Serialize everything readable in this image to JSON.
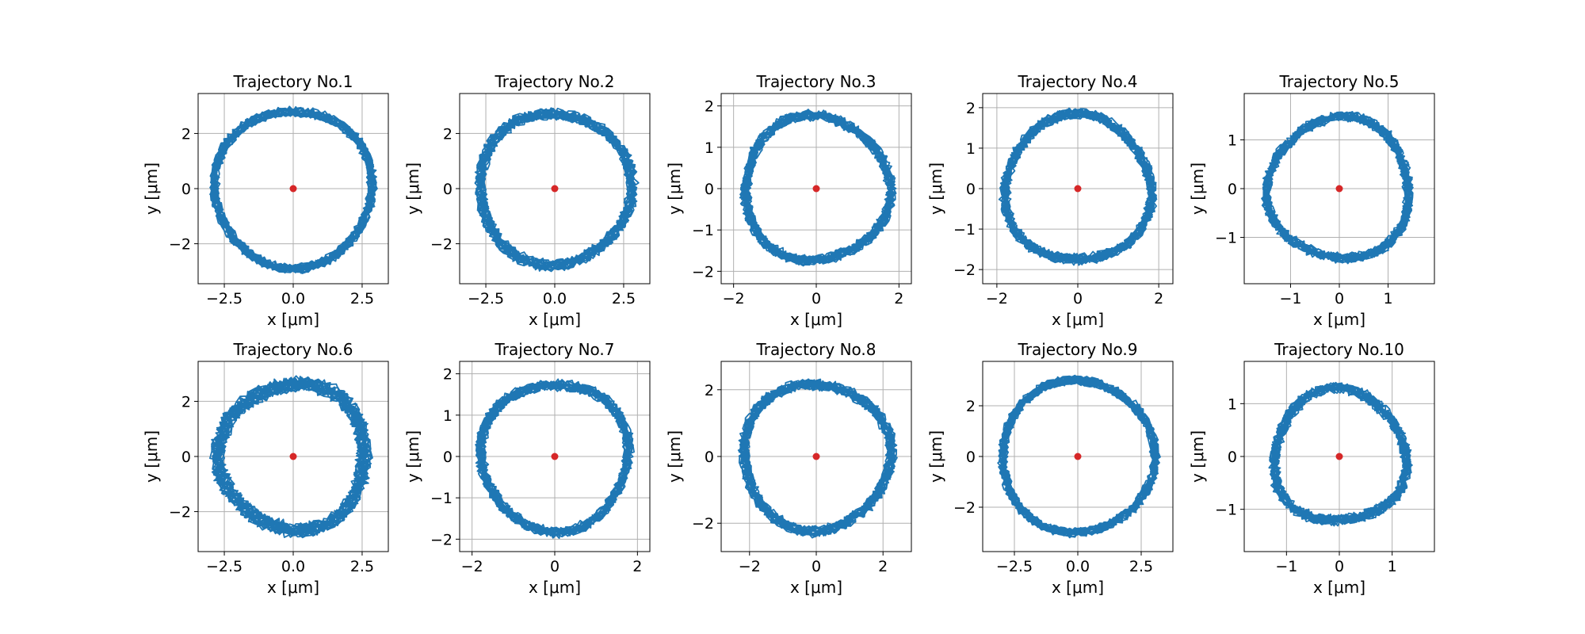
{
  "colors": {
    "trajectory": "#1f77b4",
    "center": "#d62728",
    "grid": "#b0b0b0"
  },
  "chart_data": [
    {
      "type": "line",
      "title": "Trajectory No.1",
      "xlabel": "x [μm]",
      "ylabel": "y [μm]",
      "grid": true,
      "xlim": [
        -3.45,
        3.45
      ],
      "ylim": [
        -3.45,
        3.45
      ],
      "xticks": [
        -2.5,
        0.0,
        2.5
      ],
      "xtick_labels": [
        "−2.5",
        "0.0",
        "2.5"
      ],
      "yticks": [
        -2,
        0,
        2
      ],
      "ytick_labels": [
        "−2",
        "0",
        "2"
      ],
      "center": [
        0,
        0
      ],
      "radius": 2.85,
      "noise": 0.13
    },
    {
      "type": "line",
      "title": "Trajectory No.2",
      "xlabel": "x [μm]",
      "ylabel": "y [μm]",
      "grid": true,
      "xlim": [
        -3.45,
        3.45
      ],
      "ylim": [
        -3.45,
        3.45
      ],
      "xticks": [
        -2.5,
        0.0,
        2.5
      ],
      "xtick_labels": [
        "−2.5",
        "0.0",
        "2.5"
      ],
      "yticks": [
        -2,
        0,
        2
      ],
      "ytick_labels": [
        "−2",
        "0",
        "2"
      ],
      "center": [
        0,
        0
      ],
      "radius": 2.75,
      "noise": 0.16
    },
    {
      "type": "line",
      "title": "Trajectory No.3",
      "xlabel": "x [μm]",
      "ylabel": "y [μm]",
      "grid": true,
      "xlim": [
        -2.3,
        2.3
      ],
      "ylim": [
        -2.3,
        2.3
      ],
      "xticks": [
        -2,
        0,
        2
      ],
      "xtick_labels": [
        "−2",
        "0",
        "2"
      ],
      "yticks": [
        -2,
        -1,
        0,
        1,
        2
      ],
      "ytick_labels": [
        "−2",
        "−1",
        "0",
        "1",
        "2"
      ],
      "center": [
        0,
        0
      ],
      "radius": 1.75,
      "noise": 0.14
    },
    {
      "type": "line",
      "title": "Trajectory No.4",
      "xlabel": "x [μm]",
      "ylabel": "y [μm]",
      "grid": true,
      "xlim": [
        -2.35,
        2.35
      ],
      "ylim": [
        -2.35,
        2.35
      ],
      "xticks": [
        -2,
        0,
        2
      ],
      "xtick_labels": [
        "−2",
        "0",
        "2"
      ],
      "yticks": [
        -2,
        -1,
        0,
        1,
        2
      ],
      "ytick_labels": [
        "−2",
        "−1",
        "0",
        "1",
        "2"
      ],
      "center": [
        0,
        0
      ],
      "radius": 1.8,
      "noise": 0.14
    },
    {
      "type": "line",
      "title": "Trajectory No.5",
      "xlabel": "x [μm]",
      "ylabel": "y [μm]",
      "grid": true,
      "xlim": [
        -1.95,
        1.95
      ],
      "ylim": [
        -1.95,
        1.95
      ],
      "xticks": [
        -1,
        0,
        1
      ],
      "xtick_labels": [
        "−1",
        "0",
        "1"
      ],
      "yticks": [
        -1,
        0,
        1
      ],
      "ytick_labels": [
        "−1",
        "0",
        "1"
      ],
      "center": [
        0,
        0
      ],
      "radius": 1.45,
      "noise": 0.13
    },
    {
      "type": "line",
      "title": "Trajectory No.6",
      "xlabel": "x [μm]",
      "ylabel": "y [μm]",
      "grid": true,
      "xlim": [
        -3.45,
        3.45
      ],
      "ylim": [
        -3.45,
        3.45
      ],
      "xticks": [
        -2.5,
        0.0,
        2.5
      ],
      "xtick_labels": [
        "−2.5",
        "0.0",
        "2.5"
      ],
      "yticks": [
        -2,
        0,
        2
      ],
      "ytick_labels": [
        "−2",
        "0",
        "2"
      ],
      "center": [
        0,
        0
      ],
      "radius": 2.65,
      "noise": 0.22
    },
    {
      "type": "line",
      "title": "Trajectory No.7",
      "xlabel": "x [μm]",
      "ylabel": "y [μm]",
      "grid": true,
      "xlim": [
        -2.3,
        2.3
      ],
      "ylim": [
        -2.3,
        2.3
      ],
      "xticks": [
        -2,
        0,
        2
      ],
      "xtick_labels": [
        "−2",
        "0",
        "2"
      ],
      "yticks": [
        -2,
        -1,
        0,
        1,
        2
      ],
      "ytick_labels": [
        "−2",
        "−1",
        "0",
        "1",
        "2"
      ],
      "center": [
        0,
        0
      ],
      "radius": 1.78,
      "noise": 0.14
    },
    {
      "type": "line",
      "title": "Trajectory No.8",
      "xlabel": "x [μm]",
      "ylabel": "y [μm]",
      "grid": true,
      "xlim": [
        -2.85,
        2.85
      ],
      "ylim": [
        -2.85,
        2.85
      ],
      "xticks": [
        -2,
        0,
        2
      ],
      "xtick_labels": [
        "−2",
        "0",
        "2"
      ],
      "yticks": [
        -2,
        0,
        2
      ],
      "ytick_labels": [
        "−2",
        "0",
        "2"
      ],
      "center": [
        0,
        0
      ],
      "radius": 2.2,
      "noise": 0.15
    },
    {
      "type": "line",
      "title": "Trajectory No.9",
      "xlabel": "x [μm]",
      "ylabel": "y [μm]",
      "grid": true,
      "xlim": [
        -3.75,
        3.75
      ],
      "ylim": [
        -3.75,
        3.75
      ],
      "xticks": [
        -2.5,
        0.0,
        2.5
      ],
      "xtick_labels": [
        "−2.5",
        "0.0",
        "2.5"
      ],
      "yticks": [
        -2,
        0,
        2
      ],
      "ytick_labels": [
        "−2",
        "0",
        "2"
      ],
      "center": [
        0,
        0
      ],
      "radius": 3.0,
      "noise": 0.13
    },
    {
      "type": "line",
      "title": "Trajectory No.10",
      "xlabel": "x [μm]",
      "ylabel": "y [μm]",
      "grid": true,
      "xlim": [
        -1.8,
        1.8
      ],
      "ylim": [
        -1.8,
        1.8
      ],
      "xticks": [
        -1,
        0,
        1
      ],
      "xtick_labels": [
        "−1",
        "0",
        "1"
      ],
      "yticks": [
        -1,
        0,
        1
      ],
      "ytick_labels": [
        "−1",
        "0",
        "1"
      ],
      "center": [
        0,
        0
      ],
      "radius": 1.25,
      "noise": 0.14
    }
  ]
}
